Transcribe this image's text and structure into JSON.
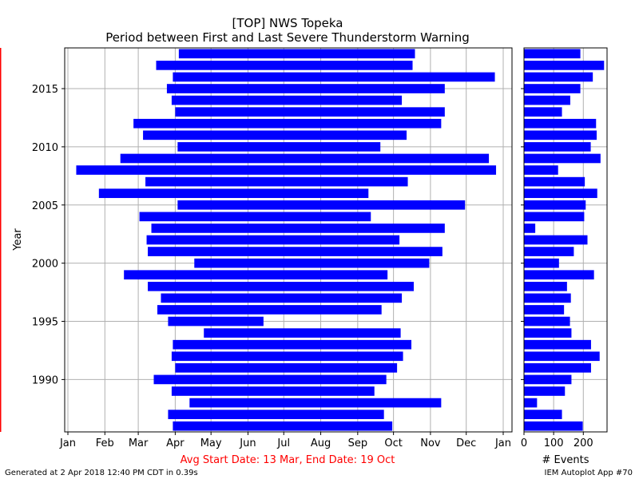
{
  "title": {
    "line1": "[TOP] NWS Topeka",
    "line2": "Period between First and Last Severe Thunderstorm Warning"
  },
  "footer": {
    "left": "Generated at 2 Apr 2018 12:40 PM CDT in 0.39s",
    "right": "IEM Autoplot App #70"
  },
  "colors": {
    "bars": "#0000ff",
    "avg_lines": "#ff0000",
    "grid": "#b0b0b0"
  },
  "chart_data": [
    {
      "type": "bar",
      "orientation": "horizontal-range",
      "ylabel": "Year",
      "xlabel": "Avg Start Date: 13 Mar, End Date: 19 Oct",
      "x_ticks": [
        "Jan",
        "Feb",
        "Mar",
        "Apr",
        "May",
        "Jun",
        "Jul",
        "Aug",
        "Sep",
        "Oct",
        "Nov",
        "Dec",
        "Jan"
      ],
      "y_ticks": [
        1990,
        1995,
        2000,
        2005,
        2010,
        2015
      ],
      "ylim": [
        1985.5,
        2018.5
      ],
      "grid": true,
      "avg_start_date": "13 Mar",
      "avg_end_date": "19 Oct",
      "years": [
        1986,
        1987,
        1988,
        1989,
        1990,
        1991,
        1992,
        1993,
        1994,
        1995,
        1996,
        1997,
        1998,
        1999,
        2000,
        2001,
        2002,
        2003,
        2004,
        2005,
        2006,
        2007,
        2008,
        2009,
        2010,
        2011,
        2012,
        2013,
        2014,
        2015,
        2016,
        2017,
        2018
      ],
      "first_warning": [
        "Mar 30",
        "Mar 26",
        "Apr 13",
        "Mar 29",
        "Mar 14",
        "Apr 1",
        "Mar 29",
        "Mar 30",
        "Apr 25",
        "Mar 26",
        "Mar 17",
        "Mar 20",
        "Mar 9",
        "Feb 17",
        "Apr 17",
        "Mar 9",
        "Mar 8",
        "Mar 12",
        "Mar 2",
        "Apr 3",
        "Jan 27",
        "Mar 7",
        "Jan 8",
        "Feb 14",
        "Apr 3",
        "Mar 5",
        "Feb 25",
        "Apr 1",
        "Mar 29",
        "Mar 25",
        "Mar 30",
        "Mar 16",
        "Apr 4"
      ],
      "last_warning": [
        "Sep 30",
        "Sep 23",
        "Nov 10",
        "Sep 15",
        "Sep 25",
        "Oct 4",
        "Oct 9",
        "Oct 16",
        "Oct 7",
        "Jun 14",
        "Sep 21",
        "Oct 8",
        "Oct 18",
        "Sep 26",
        "Oct 31",
        "Nov 11",
        "Oct 6",
        "Nov 13",
        "Sep 12",
        "Nov 30",
        "Sep 10",
        "Oct 13",
        "Dec 26",
        "Dec 20",
        "Sep 20",
        "Oct 12",
        "Nov 10",
        "Nov 13",
        "Oct 8",
        "Nov 13",
        "Dec 25",
        "Oct 17",
        "Oct 19"
      ]
    },
    {
      "type": "bar",
      "orientation": "horizontal",
      "xlabel": "# Events",
      "x_ticks": [
        0,
        100,
        200
      ],
      "xlim": [
        0,
        280
      ],
      "grid": true,
      "years": [
        1986,
        1987,
        1988,
        1989,
        1990,
        1991,
        1992,
        1993,
        1994,
        1995,
        1996,
        1997,
        1998,
        1999,
        2000,
        2001,
        2002,
        2003,
        2004,
        2005,
        2006,
        2007,
        2008,
        2009,
        2010,
        2011,
        2012,
        2013,
        2014,
        2015,
        2016,
        2017,
        2018
      ],
      "values": [
        198,
        128,
        44,
        138,
        160,
        226,
        255,
        226,
        160,
        155,
        135,
        158,
        145,
        236,
        118,
        168,
        214,
        38,
        203,
        208,
        247,
        205,
        115,
        258,
        225,
        245,
        243,
        128,
        156,
        190,
        232,
        270,
        190
      ]
    }
  ]
}
